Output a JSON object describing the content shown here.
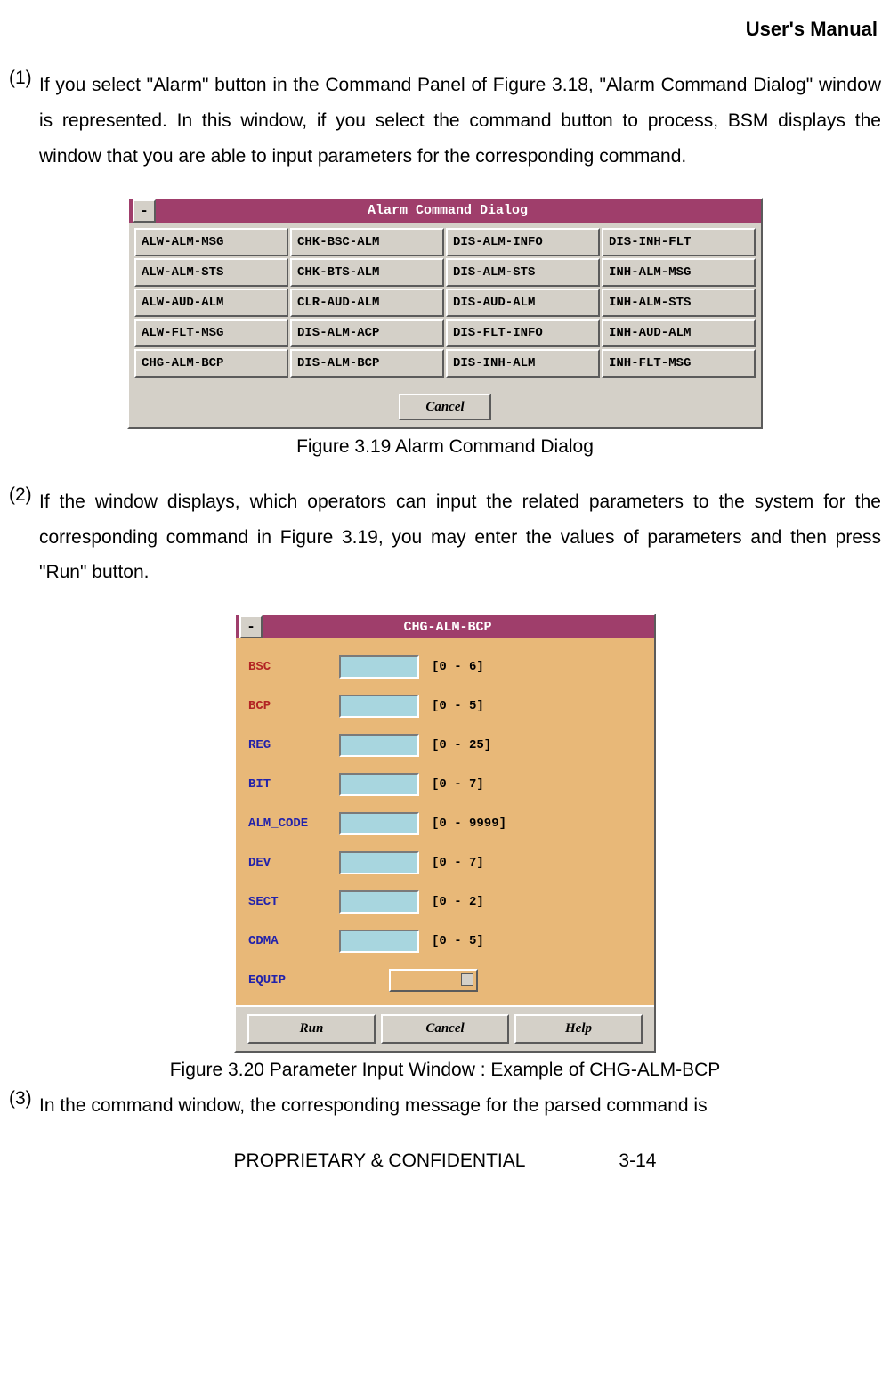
{
  "header": "User's Manual",
  "para1_num": "(1)",
  "para1": "If you select \"Alarm\" button in the Command Panel of Figure 3.18, \"Alarm Command Dialog\" window is represented. In this window, if you select the command button to process, BSM displays the window that you are able to input parameters for the corresponding command.",
  "win1": {
    "title": "Alarm Command Dialog",
    "buttons": [
      "ALW-ALM-MSG",
      "CHK-BSC-ALM",
      "DIS-ALM-INFO",
      "DIS-INH-FLT",
      "ALW-ALM-STS",
      "CHK-BTS-ALM",
      "DIS-ALM-STS",
      "INH-ALM-MSG",
      "ALW-AUD-ALM",
      "CLR-AUD-ALM",
      "DIS-AUD-ALM",
      "INH-ALM-STS",
      "ALW-FLT-MSG",
      "DIS-ALM-ACP",
      "DIS-FLT-INFO",
      "INH-AUD-ALM",
      "CHG-ALM-BCP",
      "DIS-ALM-BCP",
      "DIS-INH-ALM",
      "INH-FLT-MSG"
    ],
    "cancel": "Cancel",
    "title_bg": "#9f3e6b",
    "panel_bg": "#d4d0c8"
  },
  "caption1": "Figure 3.19 Alarm Command Dialog",
  "para2_num": "(2)",
  "para2": "If the window displays, which operators can input the related parameters to the system for the corresponding command in Figure 3.19, you may enter the values of parameters and then press \"Run\" button.",
  "win2": {
    "title": "CHG-ALM-BCP",
    "panel_bg": "#e8b878",
    "input_bg": "#a8d6df",
    "params": [
      {
        "label": "BSC",
        "range": "[0 - 6]",
        "color": "red"
      },
      {
        "label": "BCP",
        "range": "[0 - 5]",
        "color": "red"
      },
      {
        "label": "REG",
        "range": "[0 - 25]",
        "color": "blue"
      },
      {
        "label": "BIT",
        "range": "[0 - 7]",
        "color": "blue"
      },
      {
        "label": "ALM_CODE",
        "range": "[0 - 9999]",
        "color": "blue"
      },
      {
        "label": "DEV",
        "range": "[0 - 7]",
        "color": "blue"
      },
      {
        "label": "SECT",
        "range": "[0 - 2]",
        "color": "blue"
      },
      {
        "label": "CDMA",
        "range": "[0 - 5]",
        "color": "blue"
      }
    ],
    "equip_label": "EQUIP",
    "footer": {
      "run": "Run",
      "cancel": "Cancel",
      "help": "Help"
    }
  },
  "caption2": "Figure 3.20 Parameter Input Window : Example of CHG-ALM-BCP",
  "para3_num": "(3)",
  "para3": "In the command window, the corresponding message for the parsed command is",
  "footer_line": "PROPRIETARY & CONFIDENTIAL     3-14"
}
